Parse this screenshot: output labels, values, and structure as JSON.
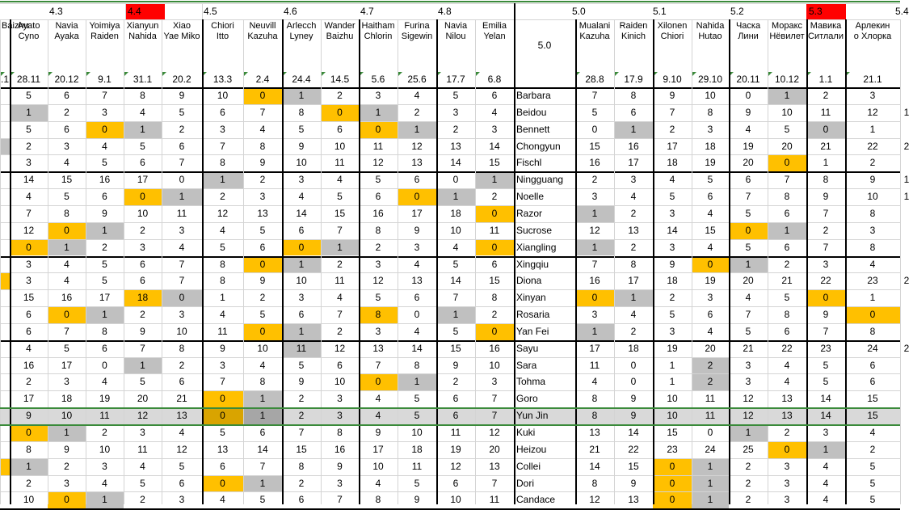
{
  "colors": {
    "zero_highlight": "#FFC000",
    "grey_cell": "#C0C0C0",
    "version_red": "#FF0000",
    "selected_row": "#D9D9D9",
    "selected_border": "#3A8A3A"
  },
  "versions": [
    {
      "label": "4.3",
      "col": 3,
      "red": false
    },
    {
      "label": "4.4",
      "col": 8,
      "red": true
    },
    {
      "label": "4.5",
      "col": 13,
      "red": false
    },
    {
      "label": "4.6",
      "col": 18,
      "red": false
    },
    {
      "label": "4.7",
      "col": 23,
      "red": false
    },
    {
      "label": "4.8",
      "col": 28,
      "red": false
    },
    {
      "label": "5.0",
      "col": 36,
      "red": false
    },
    {
      "label": "5.1",
      "col": 41,
      "red": false
    },
    {
      "label": "5.2",
      "col": 46,
      "red": false
    },
    {
      "label": "5.3",
      "col": 51,
      "red": true
    },
    {
      "label": "5.4",
      "col": 56,
      "red": false
    }
  ],
  "section_label": "5.0",
  "columns_left": [
    {
      "n1": "Baizhu",
      "n2": "",
      "date": ".1"
    },
    {
      "n1": "Ayato",
      "n2": "Cyno",
      "date": "28.11"
    },
    {
      "n1": "Navia",
      "n2": "Ayaka",
      "date": "20.12"
    },
    {
      "n1": "Yoimiya",
      "n2": "Raiden",
      "date": "9.1"
    },
    {
      "n1": "Xianyun",
      "n2": "Nahida",
      "date": "31.1"
    },
    {
      "n1": "Xiao",
      "n2": "Yae Miko",
      "date": "20.2"
    },
    {
      "n1": "Chiori",
      "n2": "Itto",
      "date": "13.3"
    },
    {
      "n1": "Neuvill",
      "n2": "Kazuha",
      "date": "2.4"
    },
    {
      "n1": "Arlecch",
      "n2": "Lyney",
      "date": "24.4"
    },
    {
      "n1": "Wander",
      "n2": "Baizhu",
      "date": "14.5"
    },
    {
      "n1": "Haitham",
      "n2": "Chlorin",
      "date": "5.6"
    },
    {
      "n1": "Furina",
      "n2": "Sigewin",
      "date": "25.6"
    },
    {
      "n1": "Navia",
      "n2": "Nilou",
      "date": "17.7"
    },
    {
      "n1": "Emilia",
      "n2": "Yelan",
      "date": "6.8"
    }
  ],
  "columns_right": [
    {
      "n1": "Mualani",
      "n2": "Kazuha",
      "date": "28.8"
    },
    {
      "n1": "Raiden",
      "n2": "Kinich",
      "date": "17.9"
    },
    {
      "n1": "Xilonen",
      "n2": "Chiori",
      "date": "9.10"
    },
    {
      "n1": "Nahida",
      "n2": "Hutao",
      "date": "29.10"
    },
    {
      "n1": "Часка",
      "n2": "Лини",
      "date": "20.11"
    },
    {
      "n1": "Моракс",
      "n2": "Нёвилет",
      "date": "10.12"
    },
    {
      "n1": "Мавика",
      "n2": "Ситлали",
      "date": "1.1"
    },
    {
      "n1": "Арлекин",
      "n2": "о Хлорка",
      "date": "21.1"
    },
    {
      "n1": "",
      "n2": "",
      "date": ""
    }
  ],
  "rows": [
    {
      "name": "Barbara",
      "left": [
        "",
        "5",
        "6",
        "7",
        "8",
        "9",
        "10",
        "0",
        "1",
        "2",
        "3",
        "4",
        "5",
        "6"
      ],
      "right": [
        "7",
        "8",
        "9",
        "10",
        "0",
        "1",
        "2",
        "3",
        ""
      ]
    },
    {
      "name": "Beidou",
      "left": [
        "",
        "1",
        "2",
        "3",
        "4",
        "5",
        "6",
        "7",
        "8",
        "0",
        "1",
        "2",
        "3",
        "4"
      ],
      "right": [
        "5",
        "6",
        "7",
        "8",
        "9",
        "10",
        "11",
        "12",
        "1"
      ]
    },
    {
      "name": "Bennett",
      "left": [
        "",
        "5",
        "6",
        "0",
        "1",
        "2",
        "3",
        "4",
        "5",
        "6",
        "0",
        "1",
        "2",
        "3"
      ],
      "right": [
        "0",
        "1",
        "2",
        "3",
        "4",
        "5",
        "0",
        "1",
        ""
      ]
    },
    {
      "name": "Chongyun",
      "left": [
        "",
        "2",
        "3",
        "4",
        "5",
        "6",
        "7",
        "8",
        "9",
        "10",
        "11",
        "12",
        "13",
        "14"
      ],
      "right": [
        "15",
        "16",
        "17",
        "18",
        "19",
        "20",
        "21",
        "22",
        "2"
      ]
    },
    {
      "name": "Fischl",
      "left": [
        "",
        "3",
        "4",
        "5",
        "6",
        "7",
        "8",
        "9",
        "10",
        "11",
        "12",
        "13",
        "14",
        "15"
      ],
      "right": [
        "16",
        "17",
        "18",
        "19",
        "20",
        "0",
        "1",
        "2",
        ""
      ]
    },
    {
      "name": "Ningguang",
      "left": [
        "",
        "14",
        "15",
        "16",
        "17",
        "0",
        "1",
        "2",
        "3",
        "4",
        "5",
        "6",
        "0",
        "1"
      ],
      "right": [
        "2",
        "3",
        "4",
        "5",
        "6",
        "7",
        "8",
        "9",
        "1"
      ]
    },
    {
      "name": "Noelle",
      "left": [
        "",
        "4",
        "5",
        "6",
        "0",
        "1",
        "2",
        "3",
        "4",
        "5",
        "6",
        "0",
        "1",
        "2"
      ],
      "right": [
        "3",
        "4",
        "5",
        "6",
        "7",
        "8",
        "9",
        "10",
        "1"
      ]
    },
    {
      "name": "Razor",
      "left": [
        "",
        "7",
        "8",
        "9",
        "10",
        "11",
        "12",
        "13",
        "14",
        "15",
        "16",
        "17",
        "18",
        "0"
      ],
      "right": [
        "1",
        "2",
        "3",
        "4",
        "5",
        "6",
        "7",
        "8",
        ""
      ]
    },
    {
      "name": "Sucrose",
      "left": [
        "",
        "12",
        "0",
        "1",
        "2",
        "3",
        "4",
        "5",
        "6",
        "7",
        "8",
        "9",
        "10",
        "11"
      ],
      "right": [
        "12",
        "13",
        "14",
        "15",
        "0",
        "1",
        "2",
        "3",
        ""
      ]
    },
    {
      "name": "Xiangling",
      "left": [
        "",
        "0",
        "1",
        "2",
        "3",
        "4",
        "5",
        "6",
        "0",
        "1",
        "2",
        "3",
        "4",
        "0"
      ],
      "right": [
        "1",
        "2",
        "3",
        "4",
        "5",
        "6",
        "7",
        "8",
        ""
      ]
    },
    {
      "name": "Xingqiu",
      "left": [
        "",
        "3",
        "4",
        "5",
        "6",
        "7",
        "8",
        "0",
        "1",
        "2",
        "3",
        "4",
        "5",
        "6"
      ],
      "right": [
        "7",
        "8",
        "9",
        "0",
        "1",
        "2",
        "3",
        "4",
        ""
      ]
    },
    {
      "name": "Diona",
      "left": [
        "",
        "3",
        "4",
        "5",
        "6",
        "7",
        "8",
        "9",
        "10",
        "11",
        "12",
        "13",
        "14",
        "15"
      ],
      "right": [
        "16",
        "17",
        "18",
        "19",
        "20",
        "21",
        "22",
        "23",
        "2"
      ]
    },
    {
      "name": "Xinyan",
      "left": [
        "",
        "15",
        "16",
        "17",
        "18",
        "0",
        "1",
        "2",
        "3",
        "4",
        "5",
        "6",
        "7",
        "8"
      ],
      "right": [
        "0",
        "1",
        "2",
        "3",
        "4",
        "5",
        "0",
        "1",
        ""
      ]
    },
    {
      "name": "Rosaria",
      "left": [
        "",
        "6",
        "0",
        "1",
        "2",
        "3",
        "4",
        "5",
        "6",
        "7",
        "8",
        "0",
        "1",
        "2"
      ],
      "right": [
        "3",
        "4",
        "5",
        "6",
        "7",
        "8",
        "9",
        "0",
        ""
      ]
    },
    {
      "name": "Yan Fei",
      "left": [
        "",
        "6",
        "7",
        "8",
        "9",
        "10",
        "11",
        "0",
        "1",
        "2",
        "3",
        "4",
        "5",
        "0"
      ],
      "right": [
        "1",
        "2",
        "3",
        "4",
        "5",
        "6",
        "7",
        "8",
        ""
      ]
    },
    {
      "name": "Sayu",
      "left": [
        "",
        "4",
        "5",
        "6",
        "7",
        "8",
        "9",
        "10",
        "11",
        "12",
        "13",
        "14",
        "15",
        "16"
      ],
      "right": [
        "17",
        "18",
        "19",
        "20",
        "21",
        "22",
        "23",
        "24",
        "2"
      ]
    },
    {
      "name": "Sara",
      "left": [
        "",
        "16",
        "17",
        "0",
        "1",
        "2",
        "3",
        "4",
        "5",
        "6",
        "7",
        "8",
        "9",
        "10"
      ],
      "right": [
        "11",
        "0",
        "1",
        "2",
        "3",
        "4",
        "5",
        "6",
        ""
      ]
    },
    {
      "name": "Tohma",
      "left": [
        "",
        "2",
        "3",
        "4",
        "5",
        "6",
        "7",
        "8",
        "9",
        "10",
        "0",
        "1",
        "2",
        "3"
      ],
      "right": [
        "4",
        "0",
        "1",
        "2",
        "3",
        "4",
        "5",
        "6",
        ""
      ]
    },
    {
      "name": "Goro",
      "left": [
        "",
        "17",
        "18",
        "19",
        "20",
        "21",
        "0",
        "1",
        "2",
        "3",
        "4",
        "5",
        "6",
        "7"
      ],
      "right": [
        "8",
        "9",
        "10",
        "11",
        "12",
        "13",
        "14",
        "15",
        ""
      ]
    },
    {
      "name": "Yun Jin",
      "left": [
        "",
        "9",
        "10",
        "11",
        "12",
        "13",
        "0",
        "1",
        "2",
        "3",
        "4",
        "5",
        "6",
        "7"
      ],
      "right": [
        "8",
        "9",
        "10",
        "11",
        "12",
        "13",
        "14",
        "15",
        ""
      ]
    },
    {
      "name": "Kuki",
      "left": [
        "",
        "0",
        "1",
        "2",
        "3",
        "4",
        "5",
        "6",
        "7",
        "8",
        "9",
        "10",
        "11",
        "12"
      ],
      "right": [
        "13",
        "14",
        "15",
        "0",
        "1",
        "2",
        "3",
        "4",
        ""
      ]
    },
    {
      "name": "Heizou",
      "left": [
        "",
        "8",
        "9",
        "10",
        "11",
        "12",
        "13",
        "14",
        "15",
        "16",
        "17",
        "18",
        "19",
        "20"
      ],
      "right": [
        "21",
        "22",
        "23",
        "24",
        "25",
        "0",
        "1",
        "2",
        ""
      ]
    },
    {
      "name": "Collei",
      "left": [
        "",
        "1",
        "2",
        "3",
        "4",
        "5",
        "6",
        "7",
        "8",
        "9",
        "10",
        "11",
        "12",
        "13"
      ],
      "right": [
        "14",
        "15",
        "0",
        "1",
        "2",
        "3",
        "4",
        "5",
        ""
      ]
    },
    {
      "name": "Dori",
      "left": [
        "",
        "2",
        "3",
        "4",
        "5",
        "6",
        "0",
        "1",
        "2",
        "3",
        "4",
        "5",
        "6",
        "7"
      ],
      "right": [
        "8",
        "9",
        "0",
        "1",
        "2",
        "3",
        "4",
        "5",
        ""
      ]
    },
    {
      "name": "Candace",
      "left": [
        "",
        "10",
        "0",
        "1",
        "2",
        "3",
        "4",
        "5",
        "6",
        "7",
        "8",
        "9",
        "10",
        "11"
      ],
      "right": [
        "12",
        "13",
        "0",
        "1",
        "2",
        "3",
        "4",
        "5",
        ""
      ]
    }
  ],
  "highlights": {
    "orange": [
      "0,7",
      "1,9",
      "2,3",
      "2,10",
      "4,19",
      "6,4",
      "6,11",
      "7,13",
      "8,2",
      "8,18",
      "9,1",
      "9,8",
      "9,13",
      "10,7",
      "10,17",
      "11,0",
      "12,4",
      "12,14",
      "12,20",
      "13,2",
      "13,10",
      "13,21",
      "14,7",
      "14,13",
      "17,10",
      "18,6",
      "20,1",
      "21,19",
      "22,0",
      "22,16",
      "23,6",
      "23,16",
      "24,2",
      "24,16"
    ],
    "grey": [
      "0,8",
      "0,19",
      "1,1",
      "1,10",
      "2,4",
      "2,11",
      "2,15",
      "2,20",
      "3,0",
      "5,6",
      "5,13",
      "6,5",
      "6,12",
      "7,14",
      "8,3",
      "8,19",
      "9,2",
      "9,9",
      "9,14",
      "10,8",
      "10,18",
      "12,5",
      "12,15",
      "13,3",
      "13,12",
      "14,8",
      "14,14",
      "15,8",
      "16,4",
      "16,17",
      "17,11",
      "17,17",
      "18,7",
      "20,2",
      "20,18",
      "21,20",
      "22,1",
      "22,17",
      "23,7",
      "23,17",
      "24,3",
      "24,17"
    ],
    "selected_row": 19,
    "selected_orange": [
      "19,6"
    ],
    "selected_grey": [
      "19,7"
    ]
  }
}
